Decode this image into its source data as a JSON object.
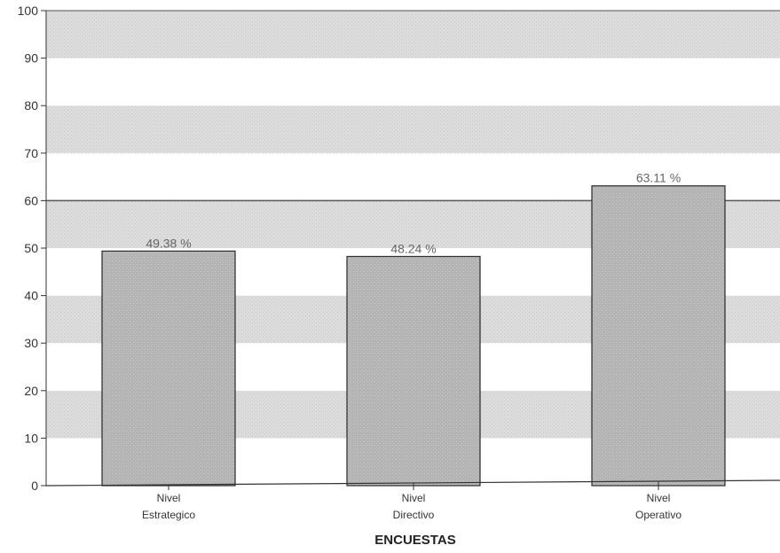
{
  "chart_data": {
    "type": "bar",
    "categories": [
      [
        "Nivel",
        "Estrategico"
      ],
      [
        "Nivel",
        "Directivo"
      ],
      [
        "Nivel",
        "Operativo"
      ]
    ],
    "values": [
      49.38,
      48.24,
      63.11
    ],
    "data_labels": [
      "49.38 %",
      "48.24 %",
      "63.11 %"
    ],
    "title": "",
    "xlabel": "ENCUESTAS",
    "ylabel": "",
    "ylim": [
      0,
      100
    ],
    "yticks": [
      0,
      10,
      20,
      30,
      40,
      50,
      60,
      70,
      80,
      90,
      100
    ],
    "grid": "alternating horizontal bands",
    "reference_line": 60,
    "colors": {
      "bar_fill": "#b3b3b3",
      "bar_stroke": "#2a2a2a",
      "band_dark": "#dcdcdc",
      "band_light": "#ffffff",
      "axis": "#333333"
    }
  }
}
